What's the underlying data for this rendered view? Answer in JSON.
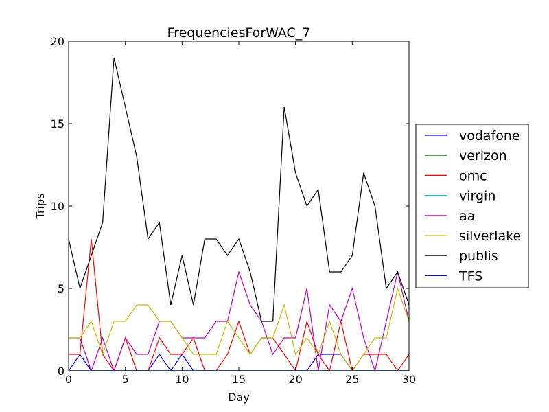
{
  "chart_data": {
    "type": "line",
    "title": "FrequenciesForWAC_7",
    "xlabel": "Day",
    "ylabel": "Trips",
    "xlim": [
      0,
      30
    ],
    "ylim": [
      0,
      20
    ],
    "xticks": [
      0,
      5,
      10,
      15,
      20,
      25,
      30
    ],
    "yticks": [
      0,
      5,
      10,
      15,
      20
    ],
    "grid": false,
    "legend_position": "outside-right",
    "x": [
      0,
      1,
      2,
      3,
      4,
      5,
      6,
      7,
      8,
      9,
      10,
      11,
      12,
      13,
      14,
      15,
      16,
      17,
      18,
      19,
      20,
      21,
      22,
      23,
      24,
      25,
      26,
      27,
      28,
      29,
      30
    ],
    "series": [
      {
        "name": "vodafone",
        "color": "#0000ff",
        "values": [
          0,
          1,
          0,
          0,
          0,
          0,
          0,
          0,
          1,
          0,
          1,
          0,
          0,
          0,
          0,
          0,
          0,
          0,
          0,
          0,
          0,
          0,
          1,
          1,
          1,
          0,
          0,
          0,
          0,
          0,
          0
        ]
      },
      {
        "name": "verizon",
        "color": "#008000",
        "values": [
          0,
          0,
          0,
          0,
          0,
          0,
          0,
          0,
          0,
          0,
          0,
          0,
          0,
          0,
          0,
          0,
          0,
          0,
          0,
          0,
          0,
          0,
          0,
          0,
          0,
          0,
          0,
          0,
          0,
          0,
          0
        ]
      },
      {
        "name": "omc",
        "color": "#ff0000",
        "values": [
          1,
          1,
          8,
          1,
          0,
          2,
          0,
          0,
          2,
          1,
          1,
          2,
          0,
          0,
          1,
          3,
          1,
          2,
          2,
          1,
          0,
          3,
          1,
          0,
          3,
          0,
          1,
          1,
          1,
          0,
          1
        ]
      },
      {
        "name": "virgin",
        "color": "#00bfbf",
        "values": [
          0,
          0,
          0,
          0,
          0,
          0,
          0,
          0,
          0,
          0,
          0,
          0,
          0,
          0,
          0,
          0,
          0,
          0,
          0,
          0,
          0,
          0,
          0,
          0,
          0,
          0,
          0,
          0,
          0,
          0,
          0
        ]
      },
      {
        "name": "aa",
        "color": "#bf00bf",
        "values": [
          2,
          2,
          0,
          2,
          0,
          2,
          1,
          1,
          3,
          3,
          2,
          2,
          2,
          3,
          3,
          6,
          4,
          3,
          1,
          2,
          2,
          5,
          0,
          4,
          3,
          5,
          2,
          0,
          3,
          6,
          3
        ]
      },
      {
        "name": "silverlake",
        "color": "#bfbf00",
        "values": [
          2,
          2,
          3,
          1,
          3,
          3,
          4,
          4,
          3,
          3,
          2,
          1,
          1,
          1,
          3,
          2,
          1,
          2,
          2,
          4,
          1,
          2,
          1,
          3,
          1,
          0,
          1,
          2,
          2,
          5,
          3
        ]
      },
      {
        "name": "publis",
        "color": "#000000",
        "values": [
          8,
          5,
          7,
          9,
          19,
          16,
          13,
          8,
          9,
          4,
          7,
          4,
          8,
          8,
          7,
          8,
          6,
          3,
          3,
          16,
          12,
          10,
          11,
          6,
          6,
          7,
          12,
          10,
          5,
          6,
          4
        ]
      },
      {
        "name": "TFS",
        "color": "#0000ff",
        "values": [
          0,
          0,
          0,
          0,
          0,
          0,
          0,
          0,
          0,
          0,
          0,
          0,
          0,
          0,
          0,
          0,
          0,
          0,
          0,
          0,
          0,
          0,
          0,
          0,
          0,
          0,
          0,
          0,
          0,
          0,
          0
        ]
      }
    ]
  }
}
